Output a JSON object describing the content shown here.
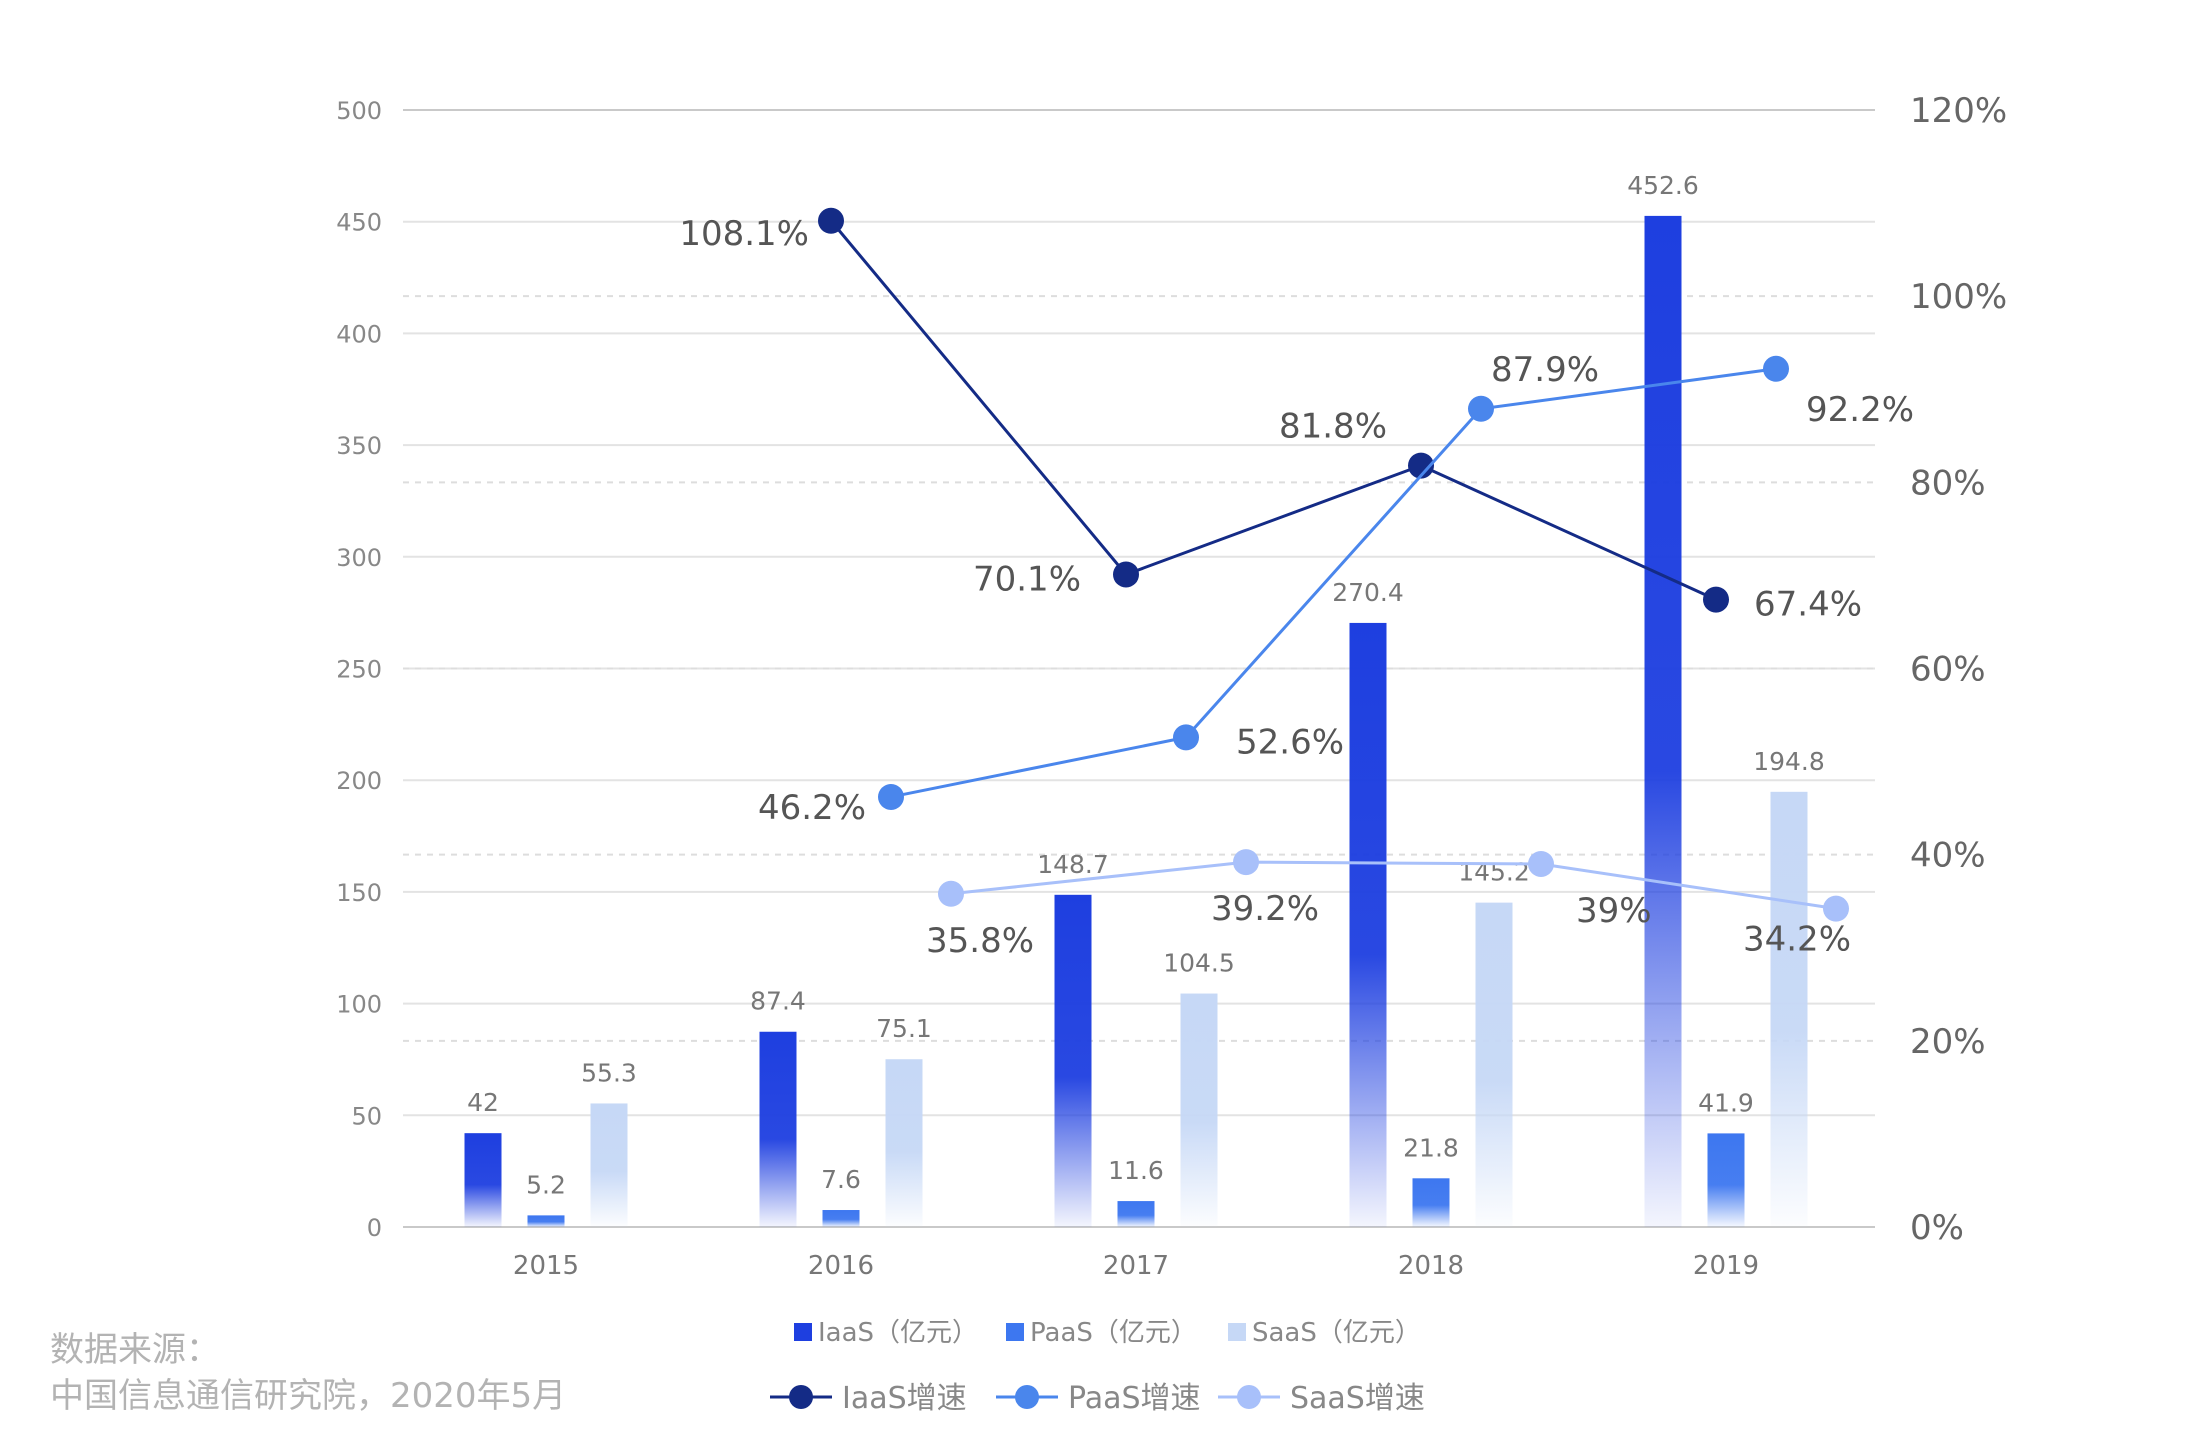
{
  "chart_data": {
    "type": "bar",
    "categories": [
      "2015",
      "2016",
      "2017",
      "2018",
      "2019"
    ],
    "left_axis": {
      "ylim": [
        0,
        500
      ],
      "ticks": [
        "500",
        "450",
        "400",
        "350",
        "300",
        "250",
        "200",
        "150",
        "100",
        "50",
        "0"
      ]
    },
    "right_axis": {
      "ylim": [
        0,
        120
      ],
      "ticks": [
        "120%",
        "100%",
        "80%",
        "60%",
        "40%",
        "20%",
        "0%"
      ]
    },
    "grid": true,
    "legend_position": "bottom",
    "bar_series": [
      {
        "name": "IaaS（亿元）",
        "color": "#1e3fe0",
        "values": [
          42,
          87.4,
          148.7,
          270.4,
          452.6
        ],
        "labels": [
          "42",
          "87.4",
          "148.7",
          "270.4",
          "452.6"
        ]
      },
      {
        "name": "PaaS（亿元）",
        "color": "#3d77f0",
        "values": [
          5.2,
          7.6,
          11.6,
          21.8,
          41.9
        ],
        "labels": [
          "5.2",
          "7.6",
          "11.6",
          "21.8",
          "41.9"
        ]
      },
      {
        "name": "SaaS（亿元）",
        "color": "#c6d8f6",
        "values": [
          55.3,
          75.1,
          104.5,
          145.2,
          194.8
        ],
        "labels": [
          "55.3",
          "75.1",
          "104.5",
          "145.2",
          "194.8"
        ]
      }
    ],
    "line_series": [
      {
        "name": "IaaS增速",
        "color": "#142b86",
        "categories": [
          "2016",
          "2017",
          "2018",
          "2019"
        ],
        "values": [
          108.1,
          70.1,
          81.8,
          67.4
        ],
        "labels": [
          "108.1%",
          "70.1%",
          "81.8%",
          "67.4%"
        ]
      },
      {
        "name": "PaaS增速",
        "color": "#4a86ec",
        "categories": [
          "2016",
          "2017",
          "2018",
          "2019"
        ],
        "values": [
          46.2,
          52.6,
          87.9,
          92.2
        ],
        "labels": [
          "46.2%",
          "52.6%",
          "87.9%",
          "92.2%"
        ]
      },
      {
        "name": "SaaS增速",
        "color": "#a8c0fa",
        "categories": [
          "2016",
          "2017",
          "2018",
          "2019"
        ],
        "values": [
          35.8,
          39.2,
          39,
          34.2
        ],
        "labels": [
          "35.8%",
          "39.2%",
          "39%",
          "34.2%"
        ]
      }
    ]
  },
  "source": {
    "line1": "数据来源：",
    "line2": "中国信息通信研究院，2020年5月"
  }
}
